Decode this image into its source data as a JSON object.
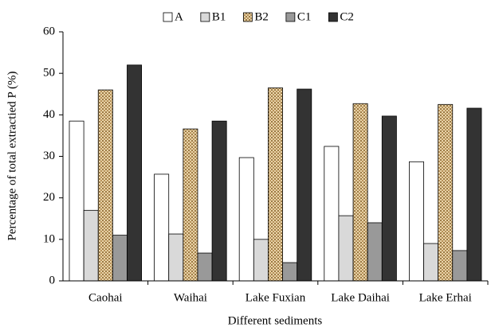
{
  "chart_data": {
    "type": "bar",
    "x_label": "Different sediments",
    "y_label": "Percentage of total extractied P (%)",
    "categories": [
      "Caohai",
      "Waihai",
      "Lake Fuxian",
      "Lake Daihai",
      "Lake Erhai"
    ],
    "series": [
      {
        "name": "A",
        "color": "#ffffff",
        "values": [
          38.5,
          25.7,
          29.7,
          32.4,
          28.7
        ]
      },
      {
        "name": "B1",
        "color": "#d9d9d9",
        "values": [
          17,
          11.3,
          10,
          15.7,
          9
        ]
      },
      {
        "name": "B2",
        "color": "#c9a56b",
        "pattern": "woven",
        "values": [
          46,
          36.6,
          46.5,
          42.7,
          42.5
        ]
      },
      {
        "name": "C1",
        "color": "#999999",
        "values": [
          11,
          6.7,
          4.4,
          14,
          7.3
        ]
      },
      {
        "name": "C2",
        "color": "#333333",
        "values": [
          52,
          38.5,
          46.2,
          39.7,
          41.6
        ]
      }
    ],
    "ylim": [
      0,
      60
    ],
    "yticks": [
      0,
      10,
      20,
      30,
      40,
      50,
      60
    ],
    "grid": false,
    "legend": "top"
  }
}
